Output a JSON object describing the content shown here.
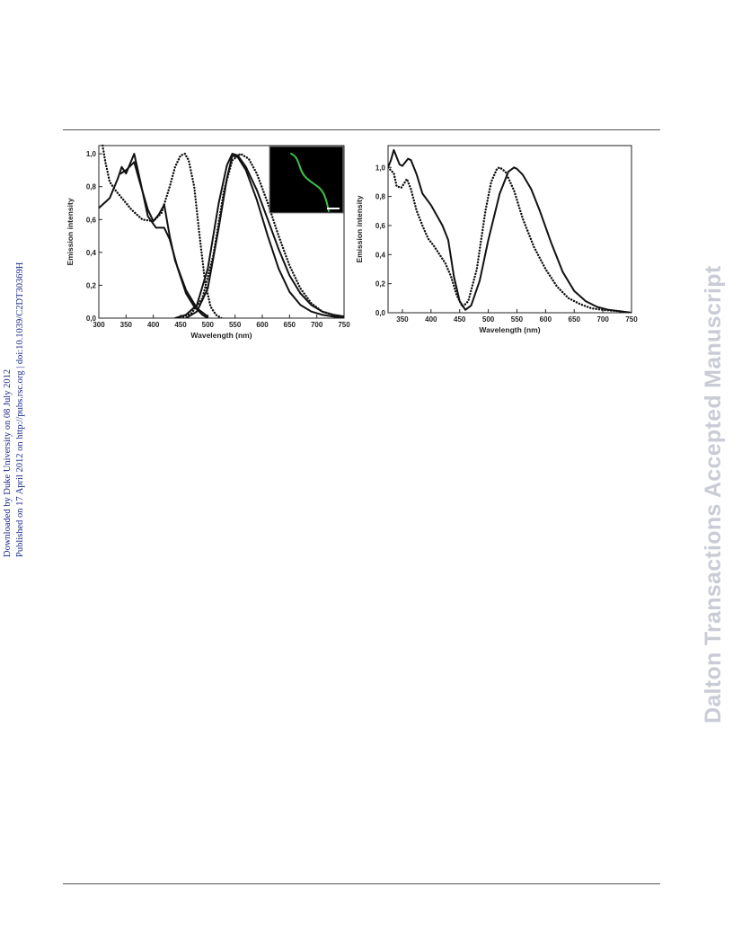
{
  "side_notice": {
    "line1": "Downloaded by Duke University on 08 July 2012",
    "line2": "Published on 17 April 2012 on http://pubs.rsc.org | doi:10.1039/C2DT30369H"
  },
  "watermark": "Dalton Transactions Accepted Manuscript",
  "colors": {
    "curve": "#111111",
    "inset_bg": "#000000",
    "fiber": "#3fbf4a"
  },
  "chart_data": [
    {
      "type": "line",
      "xlabel": "Wavelength (nm)",
      "ylabel": "Emission intensity",
      "xlim": [
        300,
        750
      ],
      "ylim": [
        0,
        1.05
      ],
      "xticks": [
        300,
        350,
        400,
        450,
        500,
        550,
        600,
        650,
        700,
        750
      ],
      "yticks": [
        "0,0",
        "0,2",
        "0,4",
        "0,6",
        "0,8",
        "1,0"
      ],
      "inset": "green-fiber-micrograph",
      "series": [
        {
          "style": "solid",
          "x": [
            300,
            320,
            335,
            342,
            350,
            365,
            375,
            390,
            405,
            420,
            430,
            445,
            460,
            475,
            490,
            500
          ],
          "y": [
            0.67,
            0.73,
            0.85,
            0.92,
            0.88,
            1.0,
            0.85,
            0.62,
            0.55,
            0.55,
            0.48,
            0.3,
            0.15,
            0.07,
            0.02,
            0.0
          ]
        },
        {
          "style": "solid",
          "x": [
            340,
            350,
            365,
            375,
            390,
            400,
            410,
            420,
            430,
            440,
            460,
            480,
            500
          ],
          "y": [
            0.88,
            0.9,
            0.95,
            0.83,
            0.66,
            0.59,
            0.63,
            0.69,
            0.5,
            0.35,
            0.17,
            0.06,
            0.01
          ]
        },
        {
          "style": "dotted",
          "x": [
            307,
            312,
            320,
            330,
            345,
            360,
            380,
            400,
            415,
            430,
            440,
            450,
            458,
            465,
            475,
            485,
            495,
            505,
            515,
            525
          ],
          "y": [
            1.05,
            0.95,
            0.83,
            0.78,
            0.72,
            0.66,
            0.6,
            0.59,
            0.64,
            0.8,
            0.92,
            0.99,
            1.0,
            0.96,
            0.8,
            0.5,
            0.22,
            0.07,
            0.02,
            0.0
          ]
        },
        {
          "style": "solid",
          "x": [
            460,
            480,
            500,
            520,
            535,
            545,
            555,
            570,
            590,
            610,
            630,
            650,
            670,
            690,
            710,
            730,
            750
          ],
          "y": [
            0.0,
            0.04,
            0.18,
            0.55,
            0.85,
            0.99,
            0.98,
            0.9,
            0.72,
            0.5,
            0.3,
            0.16,
            0.08,
            0.04,
            0.02,
            0.01,
            0.0
          ]
        },
        {
          "style": "solid",
          "x": [
            440,
            460,
            480,
            500,
            520,
            535,
            545,
            555,
            570,
            590,
            610,
            630,
            650,
            670,
            690,
            710,
            730,
            750
          ],
          "y": [
            0.0,
            0.02,
            0.08,
            0.3,
            0.7,
            0.93,
            1.0,
            0.99,
            0.92,
            0.78,
            0.6,
            0.42,
            0.26,
            0.15,
            0.08,
            0.04,
            0.02,
            0.01
          ]
        },
        {
          "style": "dotted",
          "x": [
            450,
            470,
            490,
            510,
            530,
            545,
            560,
            575,
            590,
            610,
            630,
            650,
            670,
            690,
            710,
            730,
            750
          ],
          "y": [
            0.0,
            0.03,
            0.12,
            0.38,
            0.78,
            0.96,
            1.0,
            0.97,
            0.88,
            0.7,
            0.5,
            0.32,
            0.18,
            0.09,
            0.04,
            0.02,
            0.01
          ]
        }
      ]
    },
    {
      "type": "line",
      "xlabel": "Wavelength (nm)",
      "ylabel": "Emission intensity",
      "xlim": [
        325,
        750
      ],
      "ylim": [
        0,
        1.15
      ],
      "xticks": [
        350,
        400,
        450,
        500,
        550,
        600,
        650,
        700,
        750
      ],
      "yticks": [
        "0,0",
        "0,2",
        "0,4",
        "0,6",
        "0,8",
        "1,0"
      ],
      "series": [
        {
          "style": "solid",
          "x": [
            325,
            330,
            335,
            345,
            350,
            360,
            365,
            375,
            385,
            400,
            420,
            430,
            440,
            450,
            460,
            470,
            485,
            500,
            520,
            535,
            545,
            550,
            560,
            575,
            590,
            610,
            630,
            650,
            670,
            690,
            710,
            730,
            750
          ],
          "y": [
            1.0,
            1.05,
            1.12,
            1.02,
            1.01,
            1.06,
            1.05,
            0.95,
            0.82,
            0.74,
            0.6,
            0.5,
            0.25,
            0.08,
            0.02,
            0.05,
            0.22,
            0.5,
            0.82,
            0.97,
            1.0,
            0.99,
            0.95,
            0.85,
            0.7,
            0.48,
            0.28,
            0.15,
            0.08,
            0.04,
            0.02,
            0.01,
            0.0
          ]
        },
        {
          "style": "dotted",
          "x": [
            325,
            335,
            340,
            348,
            358,
            365,
            375,
            385,
            395,
            405,
            415,
            425,
            435,
            445,
            455,
            465,
            480,
            495,
            505,
            515,
            520,
            530,
            545,
            560,
            580,
            600,
            620,
            640,
            660,
            680,
            700,
            730,
            750
          ],
          "y": [
            1.0,
            0.96,
            0.87,
            0.86,
            0.92,
            0.85,
            0.7,
            0.6,
            0.51,
            0.46,
            0.4,
            0.34,
            0.25,
            0.12,
            0.04,
            0.08,
            0.3,
            0.7,
            0.9,
            0.99,
            1.0,
            0.97,
            0.84,
            0.65,
            0.45,
            0.3,
            0.18,
            0.1,
            0.06,
            0.03,
            0.02,
            0.01,
            0.0
          ]
        }
      ]
    }
  ]
}
